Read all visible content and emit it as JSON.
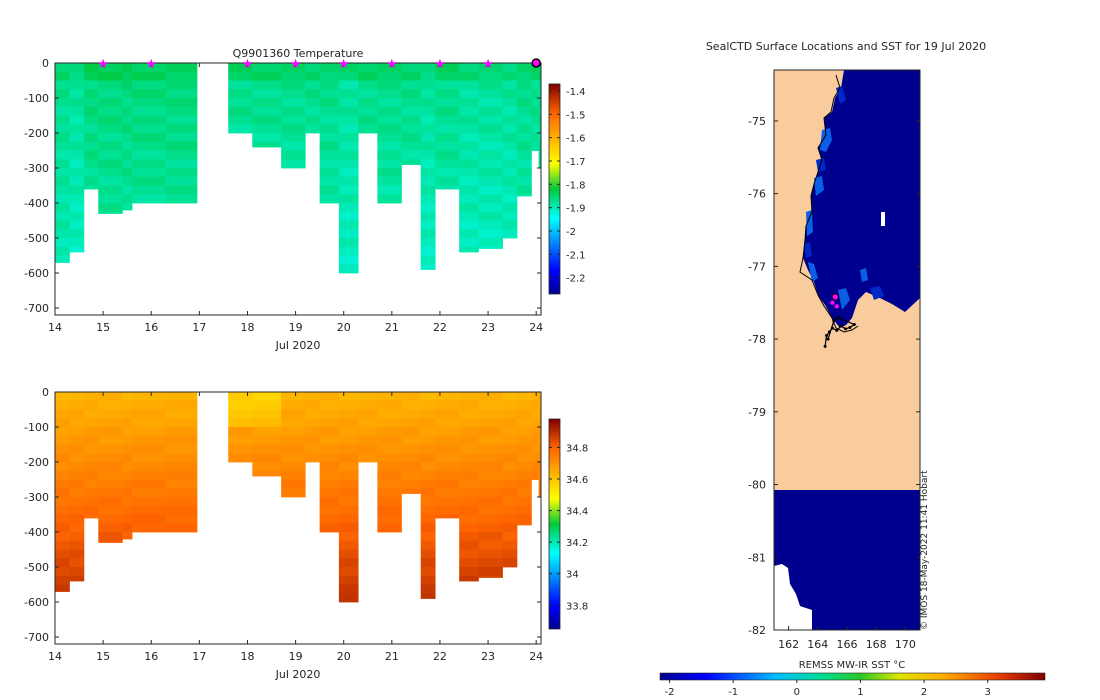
{
  "chart_data": [
    {
      "id": "temperature",
      "type": "heatmap",
      "title": "Q9901360  Temperature",
      "xlabel": "Jul 2020",
      "ylabel": "",
      "xlim": [
        14,
        24.1
      ],
      "ylim": [
        -720,
        0
      ],
      "xticks": [
        "14",
        "15",
        "16",
        "17",
        "18",
        "19",
        "20",
        "21",
        "22",
        "23",
        "24"
      ],
      "yticks": [
        "0",
        "-100",
        "-200",
        "-300",
        "-400",
        "-500",
        "-600",
        "-700"
      ],
      "colorbar_ticks": [
        "-1.4",
        "-1.5",
        "-1.6",
        "-1.7",
        "-1.8",
        "-1.9",
        "-2",
        "-2.1",
        "-2.2"
      ],
      "colorbar_range": [
        -2.27,
        -1.37
      ],
      "surface_markers_x": [
        15.0,
        16.0,
        18.0,
        19.0,
        20.0,
        21.0,
        22.0,
        23.0,
        24.0
      ],
      "profiles": [
        {
          "x": 14.0,
          "depth": 570,
          "temp": -1.88
        },
        {
          "x": 14.3,
          "depth": 540,
          "temp": -1.89
        },
        {
          "x": 14.6,
          "depth": 360,
          "temp": -1.87
        },
        {
          "x": 14.9,
          "depth": 430,
          "temp": -1.87
        },
        {
          "x": 15.4,
          "depth": 420,
          "temp": -1.87
        },
        {
          "x": 15.6,
          "depth": 400,
          "temp": -1.87
        },
        {
          "x": 16.3,
          "depth": 400,
          "temp": -1.87
        },
        {
          "x": 17.6,
          "depth": 200,
          "temp": -1.88
        },
        {
          "x": 18.1,
          "depth": 240,
          "temp": -1.88
        },
        {
          "x": 18.7,
          "depth": 300,
          "temp": -1.88
        },
        {
          "x": 19.2,
          "depth": 200,
          "temp": -1.88
        },
        {
          "x": 19.5,
          "depth": 400,
          "temp": -1.88
        },
        {
          "x": 19.9,
          "depth": 600,
          "temp": -1.89
        },
        {
          "x": 20.3,
          "depth": 200,
          "temp": -1.88
        },
        {
          "x": 20.7,
          "depth": 400,
          "temp": -1.88
        },
        {
          "x": 21.2,
          "depth": 290,
          "temp": -1.88
        },
        {
          "x": 21.6,
          "depth": 590,
          "temp": -1.89
        },
        {
          "x": 21.9,
          "depth": 360,
          "temp": -1.88
        },
        {
          "x": 22.4,
          "depth": 540,
          "temp": -1.89
        },
        {
          "x": 22.8,
          "depth": 530,
          "temp": -1.89
        },
        {
          "x": 23.3,
          "depth": 500,
          "temp": -1.89
        },
        {
          "x": 23.6,
          "depth": 380,
          "temp": -1.88
        },
        {
          "x": 23.9,
          "depth": 250,
          "temp": -1.88
        },
        {
          "x": 24.05,
          "depth": 300,
          "temp": -1.88
        }
      ]
    },
    {
      "id": "salinity",
      "type": "heatmap",
      "title": "",
      "xlabel": "Jul 2020",
      "ylabel": "",
      "xlim": [
        14,
        24.1
      ],
      "ylim": [
        -720,
        0
      ],
      "xticks": [
        "14",
        "15",
        "16",
        "17",
        "18",
        "19",
        "20",
        "21",
        "22",
        "23",
        "24"
      ],
      "yticks": [
        "0",
        "-100",
        "-200",
        "-300",
        "-400",
        "-500",
        "-600",
        "-700"
      ],
      "colorbar_ticks": [
        "34.8",
        "34.6",
        "34.4",
        "34.2",
        "34",
        "33.8"
      ],
      "colorbar_range": [
        33.65,
        34.98
      ],
      "profiles_same_as": "temperature",
      "surface_value": 34.62,
      "bottom_value": 34.86
    },
    {
      "id": "sst_map",
      "type": "heatmap",
      "title": "SealCTD Surface Locations and SST for 19 Jul 2020",
      "xlabel": "",
      "ylabel": "",
      "xlim": [
        161,
        171
      ],
      "ylim": [
        -82,
        -74.3
      ],
      "xticks": [
        "162",
        "164",
        "166",
        "168",
        "170"
      ],
      "yticks": [
        "-75",
        "-76",
        "-77",
        "-78",
        "-79",
        "-80",
        "-81",
        "-82"
      ],
      "colorbar_label": "REMSS MW-IR SST °C",
      "colorbar_ticks": [
        "-2",
        "-1",
        "0",
        "1",
        "2",
        "3"
      ],
      "colorbar_range": [
        -2.15,
        3.9
      ],
      "land_color": "#f9cc9d",
      "ocean_color": "#00008f",
      "credit": "© IMOS 18-May-2022 11:41 Hobart",
      "track_points": [
        [
          164.5,
          -78.1
        ],
        [
          164.6,
          -77.95
        ],
        [
          164.8,
          -77.9
        ],
        [
          165.0,
          -77.85
        ],
        [
          165.3,
          -77.88
        ],
        [
          165.6,
          -77.82
        ],
        [
          165.9,
          -77.86
        ],
        [
          166.2,
          -77.84
        ],
        [
          166.5,
          -77.8
        ],
        [
          165.4,
          -77.7
        ],
        [
          165.1,
          -77.75
        ],
        [
          164.7,
          -78.0
        ]
      ],
      "latest_positions": [
        [
          165.2,
          -77.42
        ],
        [
          165.0,
          -77.5
        ],
        [
          165.3,
          -77.55
        ]
      ]
    }
  ]
}
